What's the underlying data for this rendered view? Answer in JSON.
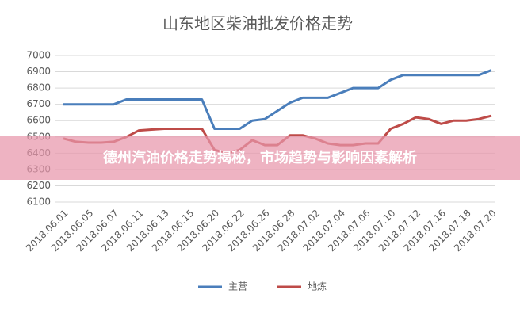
{
  "chart_data": {
    "type": "line",
    "title": "山东地区柴油批发价格走势",
    "categories": [
      "2018.06.01",
      null,
      "2018.06.05",
      null,
      "2018.06.07",
      null,
      "2018.06.11",
      null,
      "2018.06.13",
      null,
      "2018.06.15",
      null,
      "2018.06.20",
      null,
      "2018.06.22",
      null,
      "2018.06.26",
      null,
      "2018.06.28",
      null,
      "2018.07.02",
      null,
      "2018.07.04",
      null,
      "2018.07.06",
      null,
      "2018.07.10",
      null,
      "2018.07.12",
      null,
      "2018.07.16",
      null,
      "2018.07.18",
      null,
      "2018.07.20"
    ],
    "series": [
      {
        "name": "主营",
        "color": "#4a7ebb",
        "values": [
          6700,
          6700,
          6700,
          6700,
          6700,
          6730,
          6730,
          6730,
          6730,
          6730,
          6730,
          6730,
          6550,
          6550,
          6550,
          6600,
          6610,
          6660,
          6710,
          6740,
          6740,
          6740,
          6770,
          6800,
          6800,
          6800,
          6850,
          6880,
          6880,
          6880,
          6880,
          6880,
          6880,
          6880,
          6910
        ]
      },
      {
        "name": "地炼",
        "color": "#be4b48",
        "values": [
          6490,
          6470,
          6465,
          6465,
          6470,
          6500,
          6540,
          6545,
          6550,
          6550,
          6550,
          6550,
          6420,
          6400,
          6420,
          6480,
          6450,
          6450,
          6510,
          6510,
          6490,
          6460,
          6450,
          6450,
          6460,
          6460,
          6550,
          6580,
          6620,
          6610,
          6580,
          6600,
          6600,
          6610,
          6630
        ]
      }
    ],
    "ylim": [
      6100,
      7000
    ],
    "yticks": [
      6100,
      6200,
      6300,
      6400,
      6500,
      6600,
      6700,
      6800,
      6900,
      7000
    ],
    "grid": true,
    "legend": "bottom"
  },
  "overlay_title": "德州汽油价格走势揭秘，市场趋势与影响因素解析"
}
